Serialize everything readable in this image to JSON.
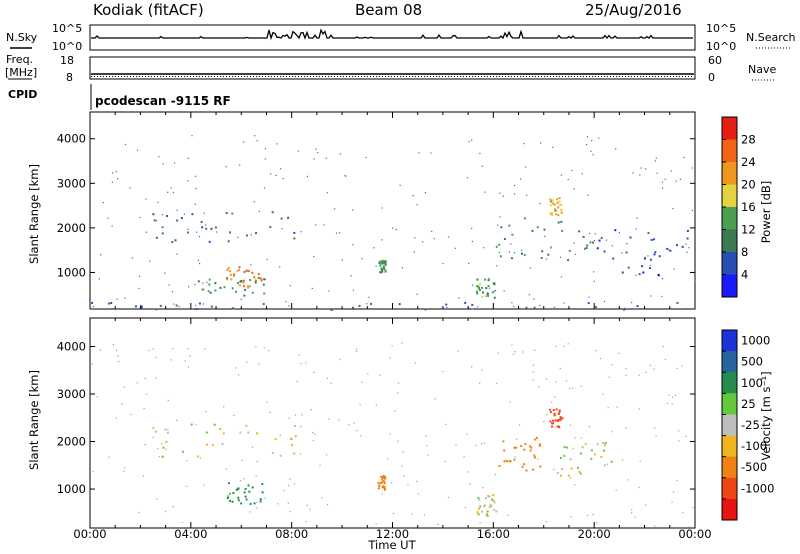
{
  "header": {
    "title": "Kodiak (fitACF)",
    "beam": "Beam 08",
    "date": "25/Aug/2016"
  },
  "top_panels": {
    "nsky": {
      "label": "N.Sky",
      "tick_top": "10^5",
      "tick_bottom": "10^0"
    },
    "nsearch": {
      "label": "N.Search",
      "tick_top": "10^5",
      "tick_bottom": "10^0"
    },
    "freq": {
      "label_line1": "Freq.",
      "label_line2": "[MHz]",
      "tick_top": "18",
      "tick_bottom": "8"
    },
    "nave": {
      "label": "Nave",
      "tick_top": "60",
      "tick_bottom": "0"
    },
    "cpid": {
      "label": "CPID",
      "value": "pcodescan -9115 RF"
    }
  },
  "axes": {
    "ylabel": "Slant Range [km]",
    "xlabel": "Time UT",
    "y_ticks": [
      "1000",
      "2000",
      "3000",
      "4000"
    ],
    "x_ticks": [
      "00:00",
      "04:00",
      "08:00",
      "12:00",
      "16:00",
      "20:00",
      "00:00"
    ]
  },
  "power_bar": {
    "label": "Power [dB]",
    "ticks": [
      "4",
      "8",
      "12",
      "16",
      "20",
      "24",
      "28"
    ],
    "colors": [
      "#1a1aff",
      "#2850b4",
      "#3c7850",
      "#4aa050",
      "#e6d23c",
      "#f0961e",
      "#f06414",
      "#e61e14"
    ]
  },
  "velocity_bar": {
    "label": "Velocity [m s⁻¹]",
    "ticks": [
      "1000",
      "500",
      "100",
      "25",
      "-25",
      "-100",
      "-500",
      "-1000"
    ],
    "colors": [
      "#1e32dc",
      "#2864a0",
      "#288c50",
      "#64c83c",
      "#bebebe",
      "#f0b41e",
      "#f08214",
      "#f04614",
      "#e61414"
    ]
  },
  "chart_data": [
    {
      "type": "heatmap",
      "name": "power",
      "xlim": [
        0,
        24
      ],
      "ylim": [
        180,
        4600
      ],
      "xlabel": "Time UT",
      "ylabel": "Slant Range [km]",
      "colorbar": "Power [dB]",
      "clim": [
        0,
        32
      ],
      "features": [
        {
          "t": [
            2.2,
            8.3
          ],
          "range": [
            1700,
            2400
          ],
          "power": 9
        },
        {
          "t": [
            5.4,
            6.9
          ],
          "range": [
            700,
            1150
          ],
          "power": 24
        },
        {
          "t": [
            3.8,
            7.0
          ],
          "range": [
            500,
            900
          ],
          "power": 12
        },
        {
          "t": [
            11.4,
            11.7
          ],
          "range": [
            1000,
            1300
          ],
          "power": 13
        },
        {
          "t": [
            15.3,
            16.1
          ],
          "range": [
            450,
            900
          ],
          "power": 13
        },
        {
          "t": [
            16.0,
            20.0
          ],
          "range": [
            1300,
            2300
          ],
          "power": 12
        },
        {
          "t": [
            18.2,
            18.7
          ],
          "range": [
            2300,
            2700
          ],
          "power": 20
        },
        {
          "t": [
            20.0,
            23.8
          ],
          "range": [
            900,
            2000
          ],
          "power": 6
        },
        {
          "t": [
            0,
            24
          ],
          "range": [
            180,
            350
          ],
          "power": 7
        }
      ]
    },
    {
      "type": "heatmap",
      "name": "velocity",
      "xlim": [
        0,
        24
      ],
      "ylim": [
        180,
        4600
      ],
      "xlabel": "Time UT",
      "ylabel": "Slant Range [km]",
      "colorbar": "Velocity [m s⁻¹]",
      "clim": [
        -1000,
        1000
      ],
      "features": [
        {
          "t": [
            2.2,
            8.3
          ],
          "range": [
            1700,
            2400
          ],
          "velocity": 0
        },
        {
          "t": [
            5.4,
            6.9
          ],
          "range": [
            700,
            1150
          ],
          "velocity": 150
        },
        {
          "t": [
            11.4,
            11.7
          ],
          "range": [
            1000,
            1300
          ],
          "velocity": -300
        },
        {
          "t": [
            15.3,
            16.1
          ],
          "range": [
            450,
            900
          ],
          "velocity": 0
        },
        {
          "t": [
            16.2,
            18.0
          ],
          "range": [
            1400,
            2200
          ],
          "velocity": -400
        },
        {
          "t": [
            18.2,
            18.7
          ],
          "range": [
            2300,
            2700
          ],
          "velocity": -900
        },
        {
          "t": [
            18.5,
            21.0
          ],
          "range": [
            1300,
            2000
          ],
          "velocity": 0
        }
      ]
    }
  ]
}
